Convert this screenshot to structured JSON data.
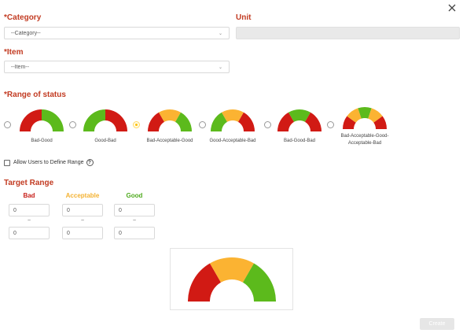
{
  "form": {
    "category": {
      "required_mark": "*",
      "label": "Category",
      "value": "--Category--"
    },
    "unit": {
      "label": "Unit",
      "value": ""
    },
    "item": {
      "required_mark": "*",
      "label": "Item",
      "value": "--Item--"
    },
    "range_status": {
      "required_mark": "*",
      "label": "Range of status"
    }
  },
  "gauges": [
    {
      "label": "Bad-Good",
      "segments": [
        "bad",
        "good"
      ],
      "selected": false
    },
    {
      "label": "Good-Bad",
      "segments": [
        "good",
        "bad"
      ],
      "selected": false
    },
    {
      "label": "Bad-Acceptable-Good",
      "segments": [
        "bad",
        "acceptable",
        "good"
      ],
      "selected": true
    },
    {
      "label": "Good-Acceptable-Bad",
      "segments": [
        "good",
        "acceptable",
        "bad"
      ],
      "selected": false
    },
    {
      "label": "Bad-Good-Bad",
      "segments": [
        "bad",
        "good",
        "bad"
      ],
      "selected": false
    },
    {
      "label": "Bad-Acceptable-Good-Acceptable-Bad",
      "segments": [
        "bad",
        "acceptable",
        "good",
        "acceptable",
        "bad"
      ],
      "selected": false
    }
  ],
  "allow_users": {
    "label": "Allow Users to Define Range",
    "checked": false,
    "help_glyph": "?"
  },
  "target_range": {
    "label": "Target Range",
    "tilde": "~",
    "columns": [
      {
        "name": "Bad",
        "color": "#c8201a",
        "from": "0",
        "to": "0"
      },
      {
        "name": "Acceptable",
        "color": "#f4b232",
        "from": "0",
        "to": "0"
      },
      {
        "name": "Good",
        "color": "#4eaa1e",
        "from": "0",
        "to": "0"
      }
    ]
  },
  "colors": {
    "bad": "#d11a14",
    "acceptable": "#fbb332",
    "good": "#5cba1c",
    "required": "#c23b22"
  },
  "actions": {
    "create_label": "Create"
  }
}
